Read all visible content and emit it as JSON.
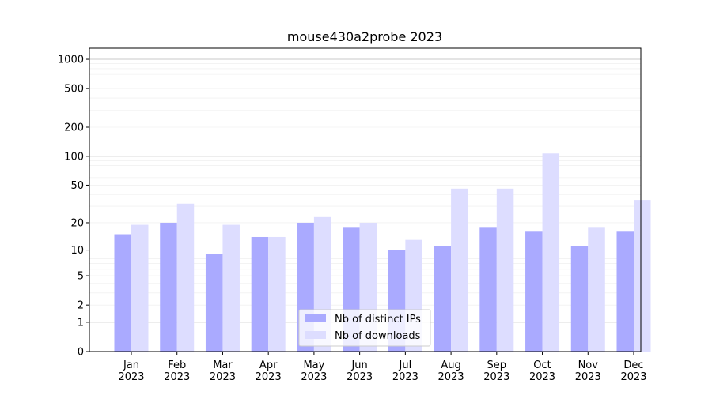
{
  "chart_data": {
    "type": "bar",
    "title": "mouse430a2probe 2023",
    "xlabel": "",
    "ylabel": "",
    "yscale": "symlog",
    "categories": [
      "Jan\n2023",
      "Feb\n2023",
      "Mar\n2023",
      "Apr\n2023",
      "May\n2023",
      "Jun\n2023",
      "Jul\n2023",
      "Aug\n2023",
      "Sep\n2023",
      "Oct\n2023",
      "Nov\n2023",
      "Dec\n2023"
    ],
    "series": [
      {
        "name": "Nb of distinct IPs",
        "color": "#aaaaff",
        "values": [
          15,
          20,
          9,
          14,
          20,
          18,
          10,
          11,
          18,
          16,
          11,
          16
        ]
      },
      {
        "name": "Nb of downloads",
        "color": "#ddddff",
        "values": [
          19,
          32,
          19,
          14,
          23,
          20,
          13,
          46,
          46,
          107,
          18,
          35
        ]
      }
    ],
    "yticks": [
      0,
      1,
      2,
      5,
      10,
      20,
      50,
      100,
      200,
      500,
      1000
    ],
    "ylim": [
      0,
      1300
    ],
    "grid": true,
    "legend_position": "lower center"
  }
}
